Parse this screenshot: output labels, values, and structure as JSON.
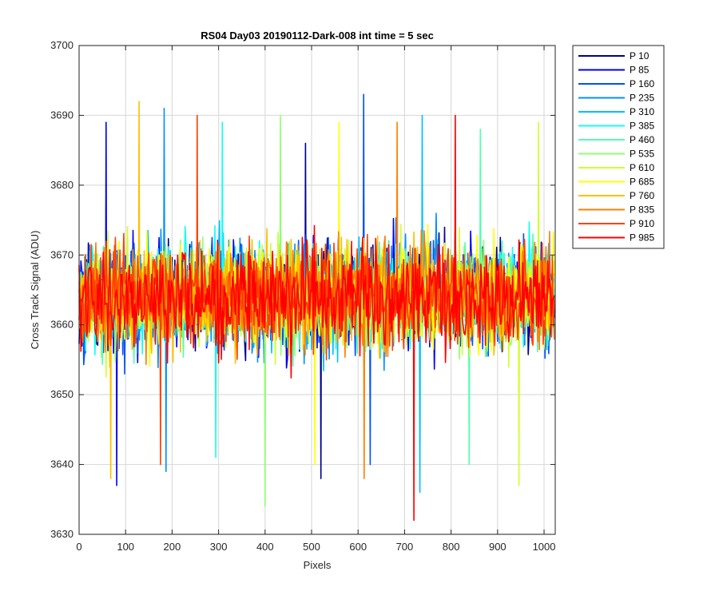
{
  "chart_data": {
    "type": "line",
    "title": "RS04 Day03 20190112-Dark-008 int time = 5 sec",
    "xlabel": "Pixels",
    "ylabel": "Cross Track Signal (ADU)",
    "xlim": [
      0,
      1024
    ],
    "ylim": [
      3630,
      3700
    ],
    "xticks": [
      0,
      100,
      200,
      300,
      400,
      500,
      600,
      700,
      800,
      900,
      1000
    ],
    "yticks": [
      3630,
      3640,
      3650,
      3660,
      3670,
      3680,
      3690,
      3700
    ],
    "grid": true,
    "legend_position": "outside-top-right",
    "n_points_per_series": 1024,
    "series": [
      {
        "name": "P 10",
        "color": "#00008f",
        "mean": 3664,
        "extreme_high": 3686,
        "extreme_low": 3638
      },
      {
        "name": "P 85",
        "color": "#0000ef",
        "mean": 3664,
        "extreme_high": 3689,
        "extreme_low": 3637
      },
      {
        "name": "P 160",
        "color": "#0050ff",
        "mean": 3664,
        "extreme_high": 3693,
        "extreme_low": 3640
      },
      {
        "name": "P 235",
        "color": "#0090ff",
        "mean": 3664,
        "extreme_high": 3691,
        "extreme_low": 3639
      },
      {
        "name": "P 310",
        "color": "#00c0ff",
        "mean": 3664,
        "extreme_high": 3690,
        "extreme_low": 3636
      },
      {
        "name": "P 385",
        "color": "#10ffef",
        "mean": 3664,
        "extreme_high": 3689,
        "extreme_low": 3641
      },
      {
        "name": "P 460",
        "color": "#50ffaf",
        "mean": 3664,
        "extreme_high": 3688,
        "extreme_low": 3640
      },
      {
        "name": "P 535",
        "color": "#90ff6f",
        "mean": 3664,
        "extreme_high": 3690,
        "extreme_low": 3634
      },
      {
        "name": "P 610",
        "color": "#cfff30",
        "mean": 3664,
        "extreme_high": 3689,
        "extreme_low": 3637
      },
      {
        "name": "P 685",
        "color": "#ffff00",
        "mean": 3664,
        "extreme_high": 3689,
        "extreme_low": 3640
      },
      {
        "name": "P 760",
        "color": "#ffbf00",
        "mean": 3664,
        "extreme_high": 3692,
        "extreme_low": 3638
      },
      {
        "name": "P 835",
        "color": "#ff7f00",
        "mean": 3664,
        "extreme_high": 3689,
        "extreme_low": 3638
      },
      {
        "name": "P 910",
        "color": "#ff4000",
        "mean": 3664,
        "extreme_high": 3690,
        "extreme_low": 3640
      },
      {
        "name": "P 985",
        "color": "#ff0000",
        "mean": 3664,
        "extreme_high": 3690,
        "extreme_low": 3632
      }
    ]
  }
}
